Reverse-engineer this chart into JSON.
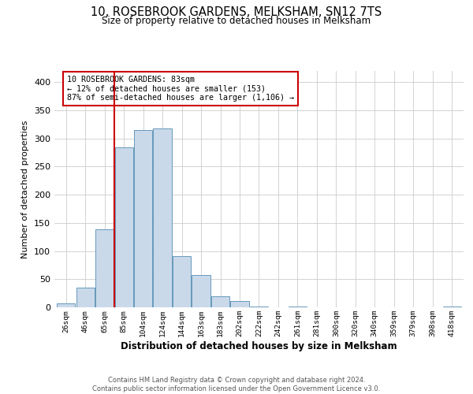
{
  "title": "10, ROSEBROOK GARDENS, MELKSHAM, SN12 7TS",
  "subtitle": "Size of property relative to detached houses in Melksham",
  "xlabel": "Distribution of detached houses by size in Melksham",
  "ylabel": "Number of detached properties",
  "bin_labels": [
    "26sqm",
    "46sqm",
    "65sqm",
    "85sqm",
    "104sqm",
    "124sqm",
    "144sqm",
    "163sqm",
    "183sqm",
    "202sqm",
    "222sqm",
    "242sqm",
    "261sqm",
    "281sqm",
    "300sqm",
    "320sqm",
    "340sqm",
    "359sqm",
    "379sqm",
    "398sqm",
    "418sqm"
  ],
  "bar_heights": [
    7,
    35,
    139,
    284,
    315,
    318,
    91,
    57,
    19,
    11,
    2,
    0,
    1,
    0,
    0,
    0,
    0,
    0,
    0,
    0,
    2
  ],
  "bar_color": "#c9d9ea",
  "bar_edge_color": "#6699bb",
  "vline_x_idx": 3,
  "vline_color": "#cc0000",
  "annotation_text": "10 ROSEBROOK GARDENS: 83sqm\n← 12% of detached houses are smaller (153)\n87% of semi-detached houses are larger (1,106) →",
  "annotation_box_color": "#ffffff",
  "annotation_box_edge": "#cc0000",
  "ylim": [
    0,
    420
  ],
  "yticks": [
    0,
    50,
    100,
    150,
    200,
    250,
    300,
    350,
    400
  ],
  "footer_text": "Contains HM Land Registry data © Crown copyright and database right 2024.\nContains public sector information licensed under the Open Government Licence v3.0.",
  "bg_color": "#ffffff",
  "grid_color": "#cccccc"
}
